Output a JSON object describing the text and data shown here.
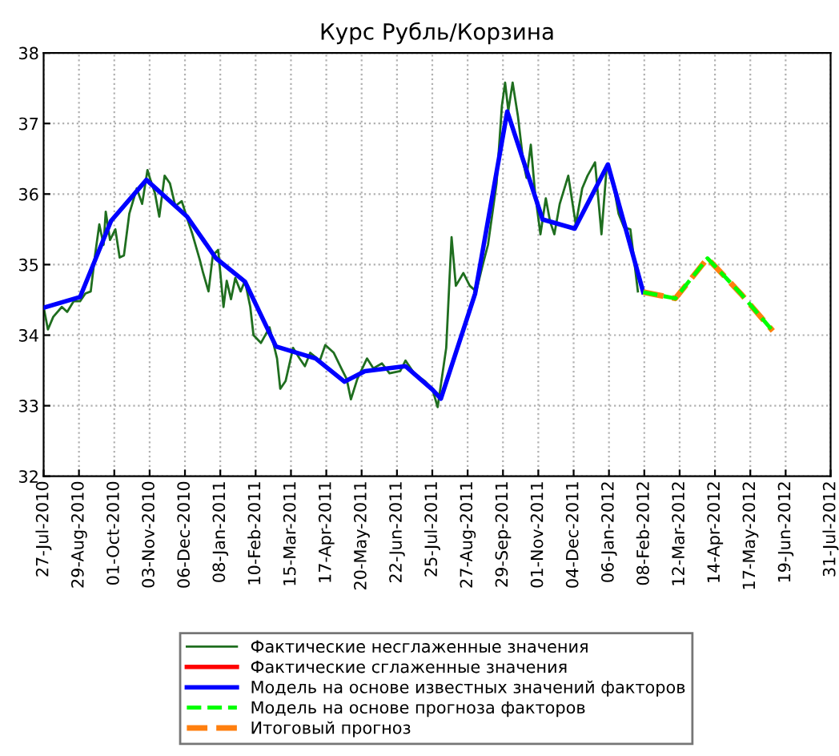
{
  "chart_data": {
    "type": "line",
    "title": "Курс Рубль/Корзина",
    "xlim": [
      "2010-07-27",
      "2012-07-31"
    ],
    "xticks": [
      {
        "value": "2010-07-27",
        "label": "27-Jul-2010"
      },
      {
        "value": "2010-08-29",
        "label": "29-Aug-2010"
      },
      {
        "value": "2010-10-01",
        "label": "01-Oct-2010"
      },
      {
        "value": "2010-11-03",
        "label": "03-Nov-2010"
      },
      {
        "value": "2010-12-06",
        "label": "06-Dec-2010"
      },
      {
        "value": "2011-01-08",
        "label": "08-Jan-2011"
      },
      {
        "value": "2011-02-10",
        "label": "10-Feb-2011"
      },
      {
        "value": "2011-03-15",
        "label": "15-Mar-2011"
      },
      {
        "value": "2011-04-17",
        "label": "17-Apr-2011"
      },
      {
        "value": "2011-05-20",
        "label": "20-May-2011"
      },
      {
        "value": "2011-06-22",
        "label": "22-Jun-2011"
      },
      {
        "value": "2011-07-25",
        "label": "25-Jul-2011"
      },
      {
        "value": "2011-08-27",
        "label": "27-Aug-2011"
      },
      {
        "value": "2011-09-29",
        "label": "29-Sep-2011"
      },
      {
        "value": "2011-11-01",
        "label": "01-Nov-2011"
      },
      {
        "value": "2011-12-04",
        "label": "04-Dec-2011"
      },
      {
        "value": "2012-01-06",
        "label": "06-Jan-2012"
      },
      {
        "value": "2012-02-08",
        "label": "08-Feb-2012"
      },
      {
        "value": "2012-03-12",
        "label": "12-Mar-2012"
      },
      {
        "value": "2012-04-14",
        "label": "14-Apr-2012"
      },
      {
        "value": "2012-05-17",
        "label": "17-May-2012"
      },
      {
        "value": "2012-06-19",
        "label": "19-Jun-2012"
      },
      {
        "value": "2012-07-31",
        "label": "31-Jul-2012"
      }
    ],
    "ylim": [
      32,
      38
    ],
    "yticks": [
      32,
      33,
      34,
      35,
      36,
      37,
      38
    ],
    "grid": true,
    "legend": "bottom",
    "series": [
      {
        "name": "Фактические несглаженные значения",
        "color": "#1f6e1f",
        "line_style": "solid",
        "x": [
          "2010-07-27",
          "2010-07-31",
          "2010-08-05",
          "2010-08-13",
          "2010-08-18",
          "2010-08-24",
          "2010-08-30",
          "2010-09-04",
          "2010-09-09",
          "2010-09-13",
          "2010-09-17",
          "2010-09-21",
          "2010-09-23",
          "2010-09-27",
          "2010-10-02",
          "2010-10-06",
          "2010-10-10",
          "2010-10-15",
          "2010-10-22",
          "2010-10-27",
          "2010-11-01",
          "2010-11-04",
          "2010-11-08",
          "2010-11-12",
          "2010-11-17",
          "2010-11-22",
          "2010-11-27",
          "2010-12-03",
          "2010-12-09",
          "2010-12-13",
          "2010-12-20",
          "2010-12-23",
          "2010-12-28",
          "2011-01-01",
          "2011-01-06",
          "2011-01-11",
          "2011-01-14",
          "2011-01-18",
          "2011-01-22",
          "2011-01-27",
          "2011-01-31",
          "2011-02-05",
          "2011-02-08",
          "2011-02-15",
          "2011-02-23",
          "2011-03-02",
          "2011-03-05",
          "2011-03-10",
          "2011-03-17",
          "2011-03-23",
          "2011-03-28",
          "2011-04-02",
          "2011-04-11",
          "2011-04-16",
          "2011-04-24",
          "2011-05-01",
          "2011-05-06",
          "2011-05-10",
          "2011-05-16",
          "2011-05-25",
          "2011-05-31",
          "2011-06-08",
          "2011-06-15",
          "2011-06-25",
          "2011-06-30",
          "2011-07-08",
          "2011-07-18",
          "2011-07-25",
          "2011-07-30",
          "2011-08-07",
          "2011-08-10",
          "2011-08-12",
          "2011-08-16",
          "2011-08-23",
          "2011-08-29",
          "2011-09-04",
          "2011-09-10",
          "2011-09-15",
          "2011-09-23",
          "2011-09-28",
          "2011-10-01",
          "2011-10-04",
          "2011-10-08",
          "2011-10-13",
          "2011-10-18",
          "2011-10-21",
          "2011-10-25",
          "2011-10-29",
          "2011-11-03",
          "2011-11-08",
          "2011-11-12",
          "2011-11-16",
          "2011-11-21",
          "2011-11-29",
          "2011-12-06",
          "2011-12-12",
          "2011-12-17",
          "2011-12-24",
          "2011-12-30",
          "2012-01-04",
          "2012-01-09",
          "2012-01-15",
          "2012-01-20",
          "2012-01-26",
          "2012-02-02"
        ],
        "values": [
          34.4,
          34.08,
          34.26,
          34.4,
          34.33,
          34.48,
          34.48,
          34.59,
          34.62,
          35.13,
          35.57,
          35.28,
          35.75,
          35.35,
          35.5,
          35.1,
          35.13,
          35.72,
          36.08,
          35.86,
          36.34,
          36.19,
          36.01,
          35.68,
          36.26,
          36.15,
          35.83,
          35.9,
          35.61,
          35.43,
          35.06,
          34.88,
          34.62,
          35.13,
          35.21,
          34.4,
          34.77,
          34.51,
          34.81,
          34.62,
          34.77,
          34.4,
          34.0,
          33.89,
          34.11,
          33.67,
          33.24,
          33.35,
          33.82,
          33.67,
          33.56,
          33.75,
          33.64,
          33.86,
          33.75,
          33.53,
          33.38,
          33.09,
          33.38,
          33.67,
          33.53,
          33.6,
          33.46,
          33.49,
          33.64,
          33.46,
          33.35,
          33.24,
          32.98,
          33.82,
          34.77,
          35.39,
          34.7,
          34.88,
          34.7,
          34.62,
          34.99,
          35.28,
          36.15,
          37.25,
          37.58,
          37.18,
          37.58,
          37.1,
          36.45,
          36.23,
          36.7,
          36.01,
          35.43,
          35.94,
          35.61,
          35.43,
          35.86,
          36.26,
          35.57,
          36.08,
          36.26,
          36.45,
          35.43,
          36.41,
          36.23,
          35.72,
          35.53,
          35.5,
          34.62
        ]
      },
      {
        "name": "Фактические сглаженные значения",
        "color": "#ff0000",
        "line_style": "solid"
      },
      {
        "name": "Модель на основе известных значений факторов",
        "color": "#0000ff",
        "line_style": "solid",
        "x": [
          "2010-07-27",
          "2010-08-30",
          "2010-09-28",
          "2010-10-31",
          "2010-12-08",
          "2011-01-04",
          "2011-01-31",
          "2011-03-01",
          "2011-04-07",
          "2011-05-04",
          "2011-05-23",
          "2011-06-30",
          "2011-07-25",
          "2011-08-02",
          "2011-09-03",
          "2011-10-03",
          "2011-11-05",
          "2011-12-05",
          "2012-01-05",
          "2012-02-07"
        ],
        "values": [
          34.39,
          34.54,
          35.62,
          36.2,
          35.68,
          35.09,
          34.76,
          33.84,
          33.67,
          33.34,
          33.49,
          33.56,
          33.23,
          33.1,
          34.59,
          37.17,
          35.64,
          35.51,
          36.42,
          34.61
        ]
      },
      {
        "name": "Модель на основе прогноза факторов",
        "color": "#00ff00",
        "line_style": "dashed",
        "x": [
          "2012-02-07",
          "2012-03-08",
          "2012-04-07",
          "2012-05-08",
          "2012-06-07"
        ],
        "values": [
          34.61,
          34.52,
          35.09,
          34.59,
          34.06
        ]
      },
      {
        "name": "Итоговый прогноз",
        "color": "#ff7f0e",
        "line_style": "dashed",
        "x": [
          "2012-02-07",
          "2012-03-08",
          "2012-04-07",
          "2012-05-08",
          "2012-06-07"
        ],
        "values": [
          34.61,
          34.52,
          35.09,
          34.59,
          34.06
        ]
      }
    ]
  }
}
